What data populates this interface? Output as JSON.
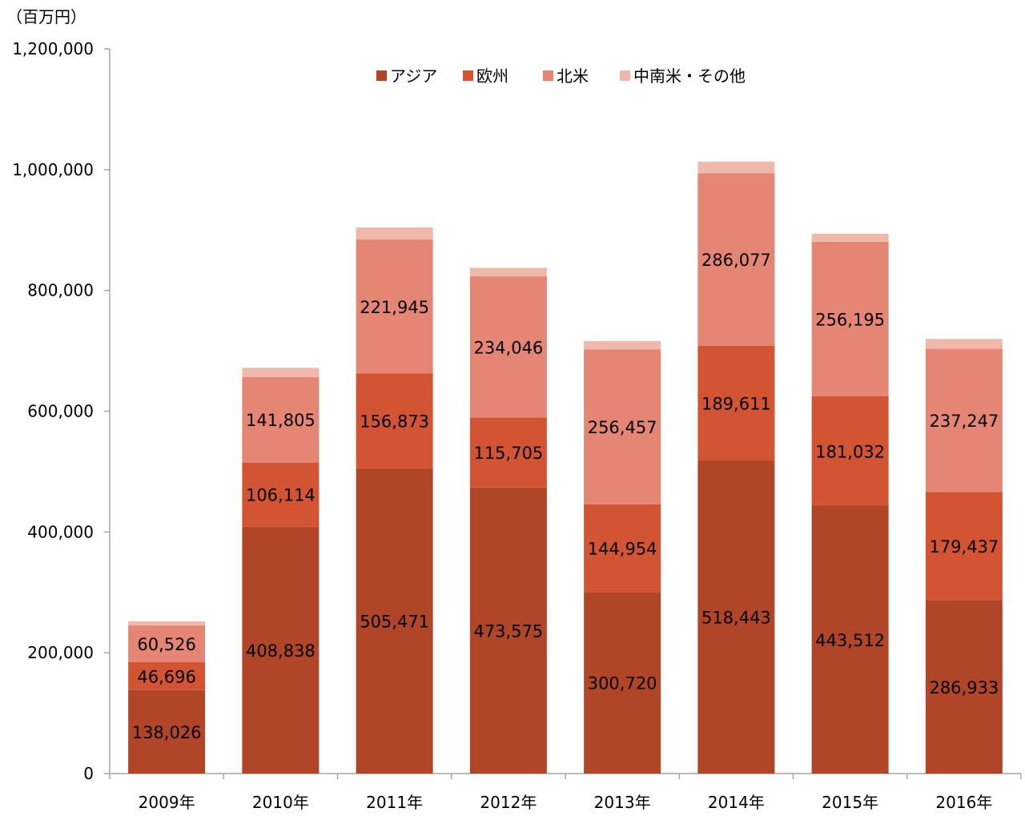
{
  "chart_data": {
    "type": "bar",
    "stacked": true,
    "unit_label": "（百万円）",
    "title": "",
    "xlabel": "",
    "ylabel": "",
    "categories": [
      "2009年",
      "2010年",
      "2011年",
      "2012年",
      "2013年",
      "2014年",
      "2015年",
      "2016年"
    ],
    "ylim": [
      0,
      1200000
    ],
    "yticks": [
      0,
      200000,
      400000,
      600000,
      800000,
      1000000,
      1200000
    ],
    "ytick_labels": [
      "0",
      "200,000",
      "400,000",
      "600,000",
      "800,000",
      "1,000,000",
      "1,200,000"
    ],
    "grid": false,
    "legend_position": "top-center",
    "series": [
      {
        "name": "アジア",
        "color": "#B04528",
        "values": [
          138026,
          408838,
          505471,
          473575,
          300720,
          518443,
          443512,
          286933
        ],
        "labels": [
          "138,026",
          "408,838",
          "505,471",
          "473,575",
          "300,720",
          "518,443",
          "443,512",
          "286,933"
        ]
      },
      {
        "name": "欧州",
        "color": "#D25433",
        "values": [
          46696,
          106114,
          156873,
          115705,
          144954,
          189611,
          181032,
          179437
        ],
        "labels": [
          "46,696",
          "106,114",
          "156,873",
          "115,705",
          "144,954",
          "189,611",
          "181,032",
          "179,437"
        ]
      },
      {
        "name": "北米",
        "color": "#E58573",
        "values": [
          60526,
          141805,
          221945,
          234046,
          256457,
          286077,
          256195,
          237247
        ],
        "labels": [
          "60,526",
          "141,805",
          "221,945",
          "234,046",
          "256,457",
          "286,077",
          "256,195",
          "237,247"
        ]
      },
      {
        "name": "中南米・その他",
        "color": "#EFB8AB",
        "values": [
          7000,
          15000,
          20000,
          14000,
          14000,
          19000,
          13000,
          16000
        ],
        "labels": null
      }
    ]
  }
}
